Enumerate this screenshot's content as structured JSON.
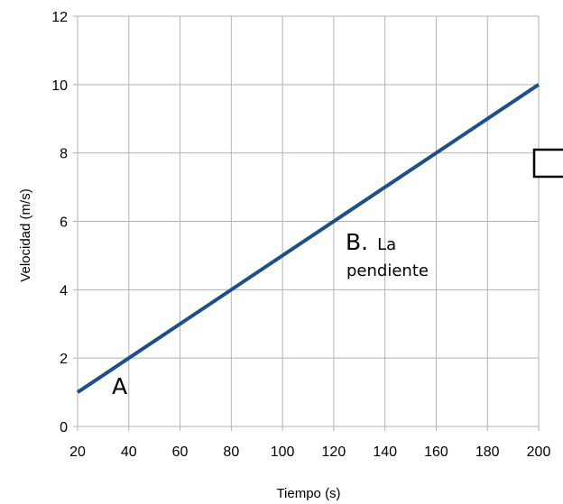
{
  "chart_data": {
    "type": "line",
    "xlabel": "Tiempo (s)",
    "ylabel": "Velocidad (m/s)",
    "xlim": [
      20,
      200
    ],
    "ylim": [
      0,
      12
    ],
    "x_ticks": [
      20,
      40,
      60,
      80,
      100,
      120,
      140,
      160,
      180,
      200
    ],
    "y_ticks": [
      0,
      2,
      4,
      6,
      8,
      10,
      12
    ],
    "grid": true,
    "legend": "none",
    "series": [
      {
        "x": [
          20,
          200
        ],
        "y": [
          1,
          10
        ],
        "color": "#1f4e8c"
      }
    ],
    "annotations": {
      "a": {
        "label": "A",
        "x": 40,
        "y": 2
      },
      "b": {
        "label": "B.",
        "text_line1": "La",
        "text_line2": "pendiente",
        "x": 120,
        "y": 6
      }
    },
    "answer_box": {
      "x": 200,
      "y": 7.7
    }
  }
}
